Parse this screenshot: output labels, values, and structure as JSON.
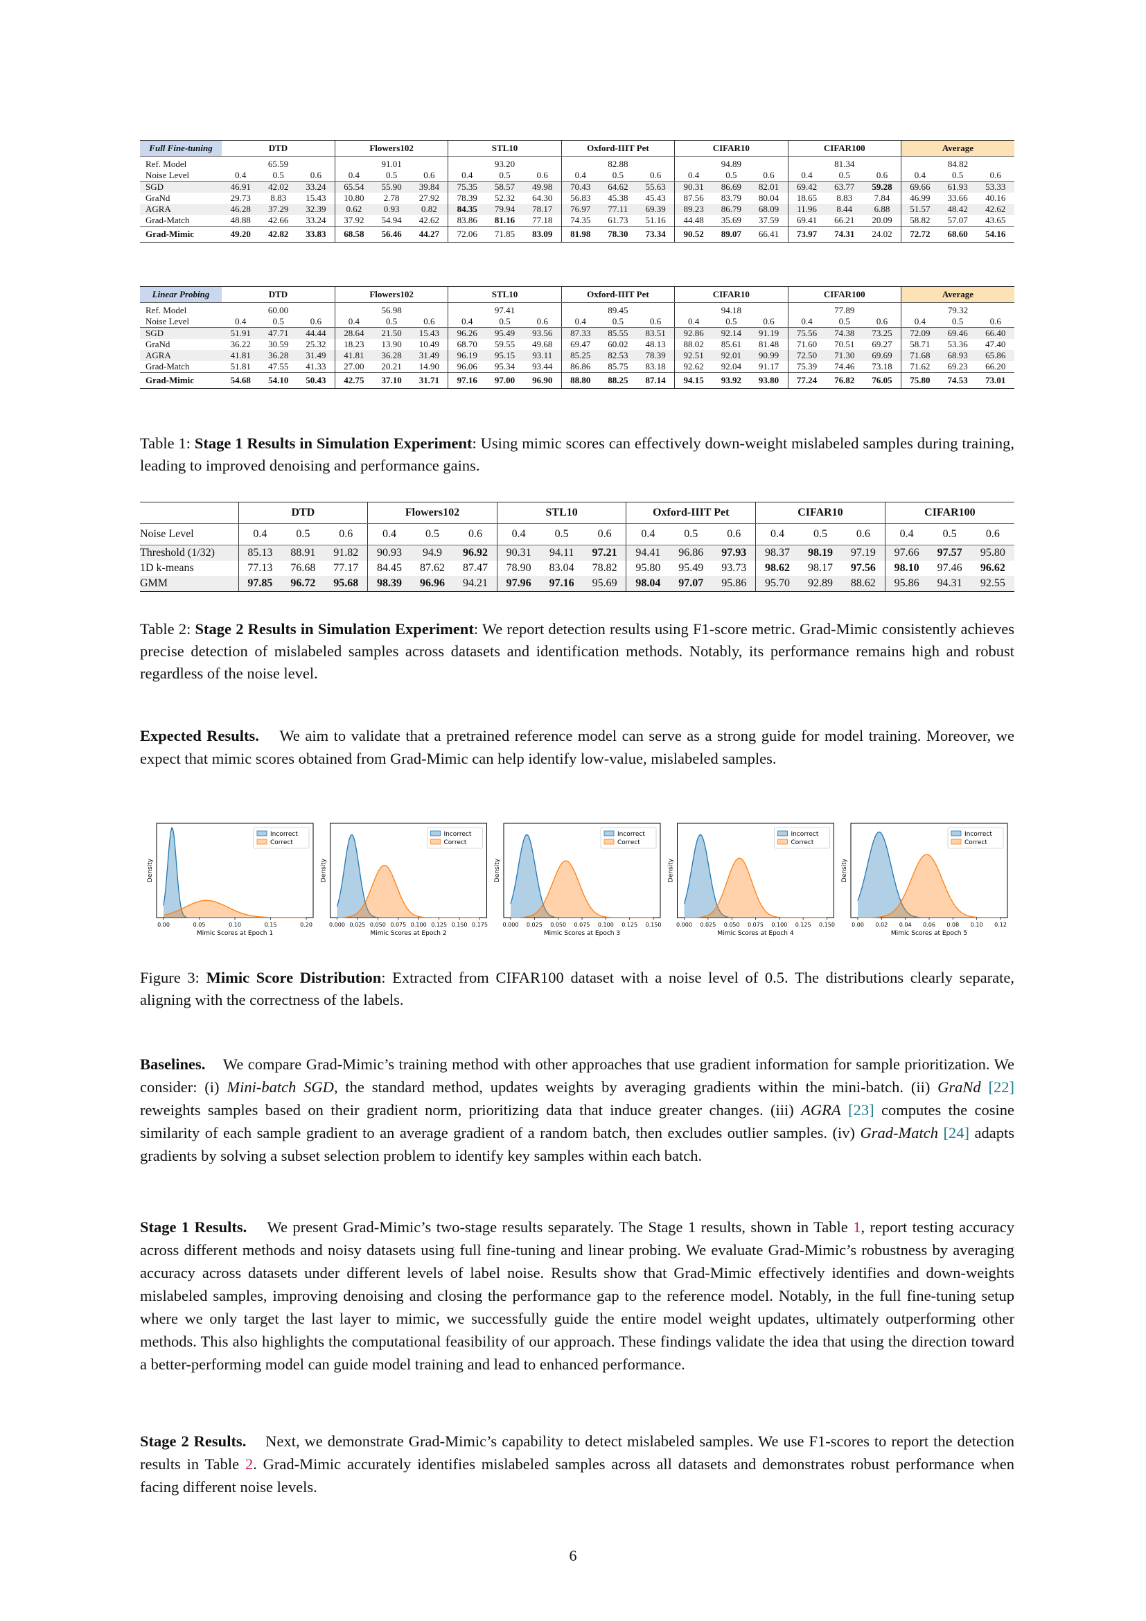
{
  "table1a": {
    "tag": "Full Fine-tuning",
    "datasets": [
      "DTD",
      "Flowers102",
      "STL10",
      "Oxford-IIIT Pet",
      "CIFAR10",
      "CIFAR100",
      "Average"
    ],
    "ref_label": "Ref. Model",
    "ref_values": [
      "65.59",
      "91.01",
      "93.20",
      "82.88",
      "94.89",
      "81.34",
      "84.82"
    ],
    "noise_label": "Noise Level",
    "noise_levels": [
      "0.4",
      "0.5",
      "0.6"
    ],
    "rows": [
      {
        "name": "SGD",
        "vals": [
          "46.91",
          "42.02",
          "33.24",
          "65.54",
          "55.90",
          "39.84",
          "75.35",
          "58.57",
          "49.98",
          "70.43",
          "64.62",
          "55.63",
          "90.31",
          "86.69",
          "82.01",
          "69.42",
          "63.77",
          "59.28",
          "69.66",
          "61.93",
          "53.33"
        ],
        "bold": [
          17
        ]
      },
      {
        "name": "GraNd",
        "vals": [
          "29.73",
          "8.83",
          "15.43",
          "10.80",
          "2.78",
          "27.92",
          "78.39",
          "52.32",
          "64.30",
          "56.83",
          "45.38",
          "45.43",
          "87.56",
          "83.79",
          "80.04",
          "18.65",
          "8.83",
          "7.84",
          "46.99",
          "33.66",
          "40.16"
        ],
        "bold": []
      },
      {
        "name": "AGRA",
        "vals": [
          "46.28",
          "37.29",
          "32.39",
          "0.62",
          "0.93",
          "0.82",
          "84.35",
          "79.94",
          "78.17",
          "76.97",
          "77.11",
          "69.39",
          "89.23",
          "86.79",
          "68.09",
          "11.96",
          "8.44",
          "6.88",
          "51.57",
          "48.42",
          "42.62"
        ],
        "bold": [
          6
        ]
      },
      {
        "name": "Grad-Match",
        "vals": [
          "48.88",
          "42.66",
          "33.24",
          "37.92",
          "54.94",
          "42.62",
          "83.86",
          "81.16",
          "77.18",
          "74.35",
          "61.73",
          "51.16",
          "44.48",
          "35.69",
          "37.59",
          "69.41",
          "66.21",
          "20.09",
          "58.82",
          "57.07",
          "43.65"
        ],
        "bold": [
          7
        ]
      }
    ],
    "final": {
      "name": "Grad-Mimic",
      "vals": [
        "49.20",
        "42.82",
        "33.83",
        "68.58",
        "56.46",
        "44.27",
        "72.06",
        "71.85",
        "83.09",
        "81.98",
        "78.30",
        "73.34",
        "90.52",
        "89.07",
        "66.41",
        "73.97",
        "74.31",
        "24.02",
        "72.72",
        "68.60",
        "54.16"
      ],
      "notbold": [
        6,
        7,
        14,
        17
      ]
    }
  },
  "table1b": {
    "tag": "Linear Probing",
    "datasets": [
      "DTD",
      "Flowers102",
      "STL10",
      "Oxford-IIIT Pet",
      "CIFAR10",
      "CIFAR100",
      "Average"
    ],
    "ref_label": "Ref. Model",
    "ref_values": [
      "60.00",
      "56.98",
      "97.41",
      "89.45",
      "94.18",
      "77.89",
      "79.32"
    ],
    "noise_label": "Noise Level",
    "noise_levels": [
      "0.4",
      "0.5",
      "0.6"
    ],
    "rows": [
      {
        "name": "SGD",
        "vals": [
          "51.91",
          "47.71",
          "44.44",
          "28.64",
          "21.50",
          "15.43",
          "96.26",
          "95.49",
          "93.56",
          "87.33",
          "85.55",
          "83.51",
          "92.86",
          "92.14",
          "91.19",
          "75.56",
          "74.38",
          "73.25",
          "72.09",
          "69.46",
          "66.40"
        ],
        "bold": []
      },
      {
        "name": "GraNd",
        "vals": [
          "36.22",
          "30.59",
          "25.32",
          "18.23",
          "13.90",
          "10.49",
          "68.70",
          "59.55",
          "49.68",
          "69.47",
          "60.02",
          "48.13",
          "88.02",
          "85.61",
          "81.48",
          "71.60",
          "70.51",
          "69.27",
          "58.71",
          "53.36",
          "47.40"
        ],
        "bold": []
      },
      {
        "name": "AGRA",
        "vals": [
          "41.81",
          "36.28",
          "31.49",
          "41.81",
          "36.28",
          "31.49",
          "96.19",
          "95.15",
          "93.11",
          "85.25",
          "82.53",
          "78.39",
          "92.51",
          "92.01",
          "90.99",
          "72.50",
          "71.30",
          "69.69",
          "71.68",
          "68.93",
          "65.86"
        ],
        "bold": []
      },
      {
        "name": "Grad-Match",
        "vals": [
          "51.81",
          "47.55",
          "41.33",
          "27.00",
          "20.21",
          "14.90",
          "96.06",
          "95.34",
          "93.44",
          "86.86",
          "85.75",
          "83.18",
          "92.62",
          "92.04",
          "91.17",
          "75.39",
          "74.46",
          "73.18",
          "71.62",
          "69.23",
          "66.20"
        ],
        "bold": []
      }
    ],
    "final": {
      "name": "Grad-Mimic",
      "vals": [
        "54.68",
        "54.10",
        "50.43",
        "42.75",
        "37.10",
        "31.71",
        "97.16",
        "97.00",
        "96.90",
        "88.80",
        "88.25",
        "87.14",
        "94.15",
        "93.92",
        "93.80",
        "77.24",
        "76.82",
        "76.05",
        "75.80",
        "74.53",
        "73.01"
      ],
      "notbold": []
    }
  },
  "caption1": {
    "prefix": "Table 1: ",
    "bold": "Stage 1 Results in Simulation Experiment",
    "text": ": Using mimic scores can effectively down-weight mislabeled samples during training, leading to improved denoising and performance gains."
  },
  "table2": {
    "datasets": [
      "DTD",
      "Flowers102",
      "STL10",
      "Oxford-IIIT Pet",
      "CIFAR10",
      "CIFAR100"
    ],
    "noise_label": "Noise Level",
    "noise_levels": [
      "0.4",
      "0.5",
      "0.6"
    ],
    "rows": [
      {
        "name": "Threshold (1/32)",
        "vals": [
          "85.13",
          "88.91",
          "91.82",
          "90.93",
          "94.9",
          "96.92",
          "90.31",
          "94.11",
          "97.21",
          "94.41",
          "96.86",
          "97.93",
          "98.37",
          "98.19",
          "97.19",
          "97.66",
          "97.57",
          "95.80"
        ],
        "bold": [
          5,
          8,
          11,
          13,
          16
        ]
      },
      {
        "name": "1D k-means",
        "vals": [
          "77.13",
          "76.68",
          "77.17",
          "84.45",
          "87.62",
          "87.47",
          "78.90",
          "83.04",
          "78.82",
          "95.80",
          "95.49",
          "93.73",
          "98.62",
          "98.17",
          "97.56",
          "98.10",
          "97.46",
          "96.62"
        ],
        "bold": [
          12,
          14,
          15,
          17
        ]
      },
      {
        "name": "GMM",
        "vals": [
          "97.85",
          "96.72",
          "95.68",
          "98.39",
          "96.96",
          "94.21",
          "97.96",
          "97.16",
          "95.69",
          "98.04",
          "97.07",
          "95.86",
          "95.70",
          "92.89",
          "88.62",
          "95.86",
          "94.31",
          "92.55"
        ],
        "bold": [
          0,
          1,
          2,
          3,
          4,
          6,
          7,
          9,
          10
        ]
      }
    ]
  },
  "caption2": {
    "prefix": "Table 2: ",
    "bold": "Stage 2 Results in Simulation Experiment",
    "text": ": We report detection results using F1-score metric. Grad-Mimic consistently achieves precise detection of mislabeled samples across datasets and identification methods. Notably, its performance remains high and robust regardless of the noise level."
  },
  "expected": {
    "head": "Expected Results.",
    "text": "We aim to validate that a pretrained reference model can serve as a strong guide for model training. Moreover, we expect that mimic scores obtained from Grad-Mimic can help identify low-value, mislabeled samples."
  },
  "figure": {
    "legend": [
      "Incorrect",
      "Correct"
    ],
    "ylabel": "Density",
    "colors": {
      "incorrect": "#1f77b4",
      "correct": "#ff7f0e"
    },
    "panels": [
      {
        "xlabel": "Mimic Scores at Epoch 1",
        "ticks": [
          "0.00",
          "0.05",
          "0.10",
          "0.15",
          "0.20"
        ],
        "xmin": 0,
        "xmax": 0.2,
        "inc_mu": 0.012,
        "inc_sd": 0.006,
        "inc_h": 1.0,
        "cor_mu": 0.06,
        "cor_sd": 0.03,
        "cor_h": 0.19
      },
      {
        "xlabel": "Mimic Scores at Epoch 2",
        "ticks": [
          "0.000",
          "0.025",
          "0.050",
          "0.075",
          "0.100",
          "0.125",
          "0.150",
          "0.175"
        ],
        "xmin": 0,
        "xmax": 0.175,
        "inc_mu": 0.018,
        "inc_sd": 0.009,
        "inc_h": 0.92,
        "cor_mu": 0.058,
        "cor_sd": 0.015,
        "cor_h": 0.58
      },
      {
        "xlabel": "Mimic Scores at Epoch 3",
        "ticks": [
          "0.000",
          "0.025",
          "0.050",
          "0.075",
          "0.100",
          "0.125",
          "0.150"
        ],
        "xmin": 0,
        "xmax": 0.15,
        "inc_mu": 0.017,
        "inc_sd": 0.009,
        "inc_h": 0.92,
        "cor_mu": 0.058,
        "cor_sd": 0.014,
        "cor_h": 0.63
      },
      {
        "xlabel": "Mimic Scores at Epoch 4",
        "ticks": [
          "0.000",
          "0.025",
          "0.050",
          "0.075",
          "0.100",
          "0.125",
          "0.150"
        ],
        "xmin": 0,
        "xmax": 0.15,
        "inc_mu": 0.017,
        "inc_sd": 0.009,
        "inc_h": 0.92,
        "cor_mu": 0.058,
        "cor_sd": 0.013,
        "cor_h": 0.66
      },
      {
        "xlabel": "Mimic Scores at Epoch 5",
        "ticks": [
          "0.00",
          "0.02",
          "0.04",
          "0.06",
          "0.08",
          "0.10",
          "0.12"
        ],
        "xmin": 0,
        "xmax": 0.12,
        "inc_mu": 0.018,
        "inc_sd": 0.01,
        "inc_h": 0.95,
        "cor_mu": 0.058,
        "cor_sd": 0.013,
        "cor_h": 0.7
      }
    ]
  },
  "caption3": {
    "prefix": "Figure 3: ",
    "bold": "Mimic Score Distribution",
    "text": ": Extracted from CIFAR100 dataset with a noise level of 0.5. The distributions clearly separate, aligning with the correctness of the labels."
  },
  "baselines": {
    "head": "Baselines.",
    "t1": "We compare Grad-Mimic’s training method with other approaches that use gradient information for sample prioritization. We consider: (i) ",
    "i1": "Mini-batch SGD",
    "t2": ", the standard method, updates weights by averaging gradients within the mini-batch. (ii) ",
    "i2": "GraNd",
    "r1": "[22]",
    "t3": " reweights samples based on their gradient norm, prioritizing data that induce greater changes. (iii) ",
    "i3": "AGRA",
    "r2": "[23]",
    "t4": " computes the cosine similarity of each sample gradient to an average gradient of a random batch, then excludes outlier samples. (iv) ",
    "i4": "Grad-Match",
    "r3": "[24]",
    "t5": " adapts gradients by solving a subset selection problem to identify key samples within each batch."
  },
  "stage1": {
    "head": "Stage 1 Results.",
    "t1": "We present Grad-Mimic’s two-stage results separately. The Stage 1 results, shown in Table ",
    "r1": "1",
    "t2": ", report testing accuracy across different methods and noisy datasets using full fine-tuning and linear probing. We evaluate Grad-Mimic’s robustness by averaging accuracy across datasets under different levels of label noise. Results show that Grad-Mimic effectively identifies and down-weights mislabeled samples, improving denoising and closing the performance gap to the reference model. Notably, in the full fine-tuning setup where we only target the last layer to mimic, we successfully guide the entire model weight updates, ultimately outperforming other methods. This also highlights the computational feasibility of our approach. These findings validate the idea that using the direction toward a better-performing model can guide model training and lead to enhanced performance."
  },
  "stage2": {
    "head": "Stage 2 Results.",
    "t1": "Next, we demonstrate Grad-Mimic’s capability to detect mislabeled samples. We use F1-scores to report the detection results in Table ",
    "r1": "2",
    "t2": ". Grad-Mimic accurately identifies mislabeled samples across all datasets and demonstrates robust performance when facing different noise levels."
  },
  "page_number": "6"
}
